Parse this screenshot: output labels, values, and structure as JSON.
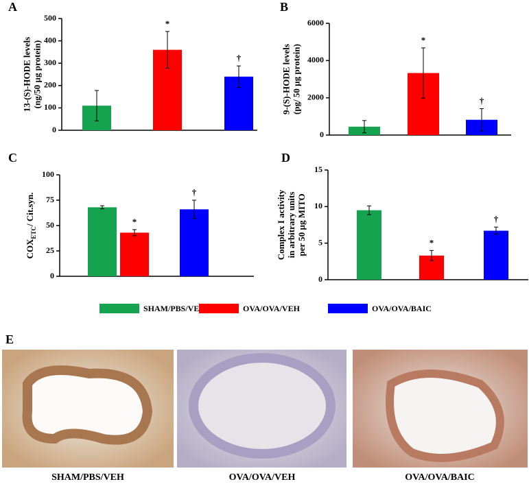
{
  "chart_data": [
    {
      "type": "bar",
      "label": "A",
      "ylabel": [
        "13-(S)-HODE levels",
        "(ng/50 µg protein)"
      ],
      "values": [
        110,
        360,
        240
      ],
      "errors": [
        68,
        82,
        48
      ],
      "annotations": [
        null,
        "*",
        "†"
      ],
      "ylim": [
        0,
        500
      ],
      "yticks": [
        0,
        100,
        200,
        300,
        400,
        500
      ]
    },
    {
      "type": "bar",
      "label": "B",
      "ylabel": [
        "9-(S)-HODE levels",
        "(pg/ 50 µg protein)"
      ],
      "values": [
        450,
        3330,
        820
      ],
      "errors": [
        330,
        1350,
        600
      ],
      "annotations": [
        null,
        "*",
        "†"
      ],
      "ylim": [
        0,
        6000
      ],
      "yticks": [
        0,
        2000,
        4000,
        6000
      ]
    },
    {
      "type": "bar",
      "label": "C",
      "ylabel_parts": [
        {
          "text": "COX"
        },
        {
          "text": "ETC",
          "sub": true
        },
        {
          "text": "/ Cit.syn."
        }
      ],
      "values": [
        68,
        43,
        66
      ],
      "errors": [
        1.5,
        3,
        9
      ],
      "annotations": [
        null,
        "*",
        "†"
      ],
      "ylim": [
        0,
        100
      ],
      "yticks": [
        0,
        25,
        50,
        75,
        100
      ]
    },
    {
      "type": "bar",
      "label": "D",
      "ylabel": [
        "Complex I activity",
        "in arbitrary units",
        "per 50 µg MITO"
      ],
      "values": [
        9.5,
        3.3,
        6.7
      ],
      "errors": [
        0.6,
        0.7,
        0.5
      ],
      "annotations": [
        null,
        "*",
        "†"
      ],
      "ylim": [
        0,
        15
      ],
      "yticks": [
        0,
        5,
        10,
        15
      ]
    }
  ],
  "legend": {
    "items": [
      {
        "name": "SHAM/PBS/VEH",
        "color": "#16a34f"
      },
      {
        "name": "OVA/OVA/VEH",
        "color": "#ff0000"
      },
      {
        "name": "OVA/OVA/BAIC",
        "color": "#0000ff"
      }
    ]
  },
  "panel_e": {
    "label": "E",
    "captions": [
      "SHAM/PBS/VEH",
      "OVA/OVA/VEH",
      "OVA/OVA/BAIC"
    ]
  }
}
